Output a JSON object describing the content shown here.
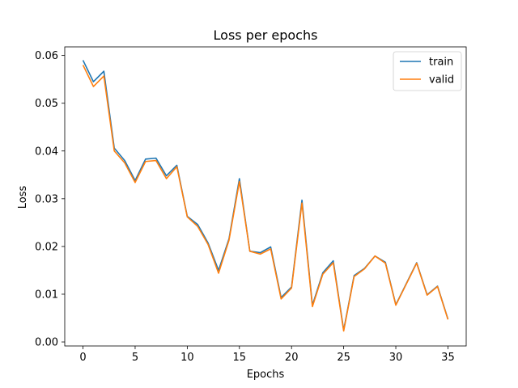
{
  "chart_data": {
    "type": "line",
    "title": "Loss per epochs",
    "xlabel": "Epochs",
    "ylabel": "Loss",
    "xlim": [
      -1.75,
      36.75
    ],
    "ylim": [
      -0.00084,
      0.0618
    ],
    "xticks": [
      0,
      5,
      10,
      15,
      20,
      25,
      30,
      35
    ],
    "xtick_labels": [
      "0",
      "5",
      "10",
      "15",
      "20",
      "25",
      "30",
      "35"
    ],
    "yticks": [
      0.0,
      0.01,
      0.02,
      0.03,
      0.04,
      0.05,
      0.06
    ],
    "ytick_labels": [
      "0.00",
      "0.01",
      "0.02",
      "0.03",
      "0.04",
      "0.05",
      "0.06"
    ],
    "grid": false,
    "legend_position": "top-right",
    "x": [
      0,
      1,
      2,
      3,
      4,
      5,
      6,
      7,
      8,
      9,
      10,
      11,
      12,
      13,
      14,
      15,
      16,
      17,
      18,
      19,
      20,
      21,
      22,
      23,
      24,
      25,
      26,
      27,
      28,
      29,
      30,
      31,
      32,
      33,
      34,
      35
    ],
    "series": [
      {
        "name": "train",
        "color": "#1f77b4",
        "values": [
          0.059,
          0.0545,
          0.0567,
          0.0406,
          0.038,
          0.0338,
          0.0383,
          0.0385,
          0.0348,
          0.037,
          0.0263,
          0.0246,
          0.0207,
          0.015,
          0.0216,
          0.0342,
          0.019,
          0.0187,
          0.0199,
          0.0093,
          0.0115,
          0.0297,
          0.0077,
          0.0145,
          0.017,
          0.0025,
          0.0139,
          0.0154,
          0.018,
          0.0167,
          0.0078,
          0.0122,
          0.0166,
          0.0099,
          0.0117,
          0.0048
        ]
      },
      {
        "name": "valid",
        "color": "#ff7f0e",
        "values": [
          0.058,
          0.0535,
          0.0557,
          0.04,
          0.0375,
          0.0334,
          0.0378,
          0.038,
          0.0342,
          0.0367,
          0.0262,
          0.0242,
          0.0204,
          0.0144,
          0.0213,
          0.0336,
          0.019,
          0.0184,
          0.0195,
          0.009,
          0.0113,
          0.0291,
          0.0074,
          0.0142,
          0.0166,
          0.0023,
          0.0137,
          0.0153,
          0.018,
          0.0165,
          0.0077,
          0.0121,
          0.0165,
          0.0098,
          0.0116,
          0.0047
        ]
      }
    ]
  }
}
